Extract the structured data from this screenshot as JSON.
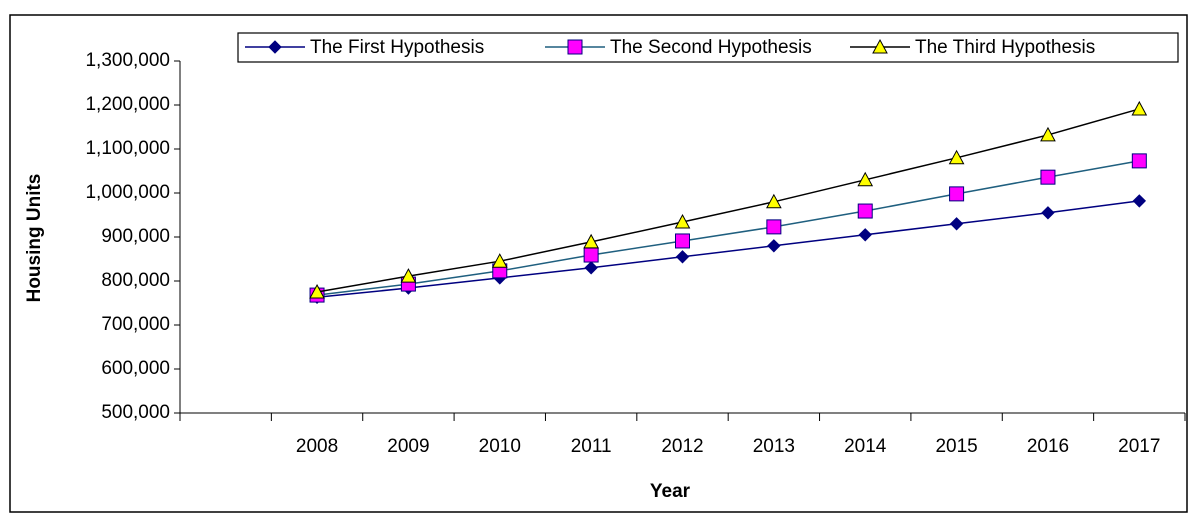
{
  "chart_data": {
    "type": "line",
    "x_label": "Year",
    "y_label": "Housing Units",
    "categories": [
      null,
      "2008",
      "2009",
      "2010",
      "2011",
      "2012",
      "2013",
      "2014",
      "2015",
      "2016",
      "2017"
    ],
    "series": [
      {
        "name": "The First Hypothesis",
        "color": "#000080",
        "marker": "diamond",
        "marker_color": "#000080",
        "values": [
          null,
          763000,
          784000,
          807000,
          830000,
          855000,
          880000,
          905000,
          930000,
          955000,
          982000
        ]
      },
      {
        "name": "The Second Hypothesis",
        "color": "#1f5f7f",
        "marker": "square",
        "marker_color": "#ff00ff",
        "values": [
          null,
          768000,
          793000,
          823000,
          859000,
          891000,
          923000,
          959000,
          998000,
          1036000,
          1073000
        ]
      },
      {
        "name": "The Third Hypothesis",
        "color": "#000000",
        "marker": "triangle",
        "marker_color": "#ffff00",
        "values": [
          null,
          775000,
          811000,
          845000,
          889000,
          934000,
          980000,
          1030000,
          1080000,
          1132000,
          1191000
        ]
      }
    ],
    "ylim": [
      500000,
      1300000
    ],
    "yticks": [
      {
        "value": 500000,
        "label": "500,000"
      },
      {
        "value": 600000,
        "label": "600,000"
      },
      {
        "value": 700000,
        "label": "700,000"
      },
      {
        "value": 800000,
        "label": "800,000"
      },
      {
        "value": 900000,
        "label": "900,000"
      },
      {
        "value": 1000000,
        "label": "1,000,000"
      },
      {
        "value": 1100000,
        "label": "1,100,000"
      },
      {
        "value": 1200000,
        "label": "1,200,000"
      },
      {
        "value": 1300000,
        "label": "1,300,000"
      }
    ],
    "grid": false,
    "legend": "top"
  }
}
